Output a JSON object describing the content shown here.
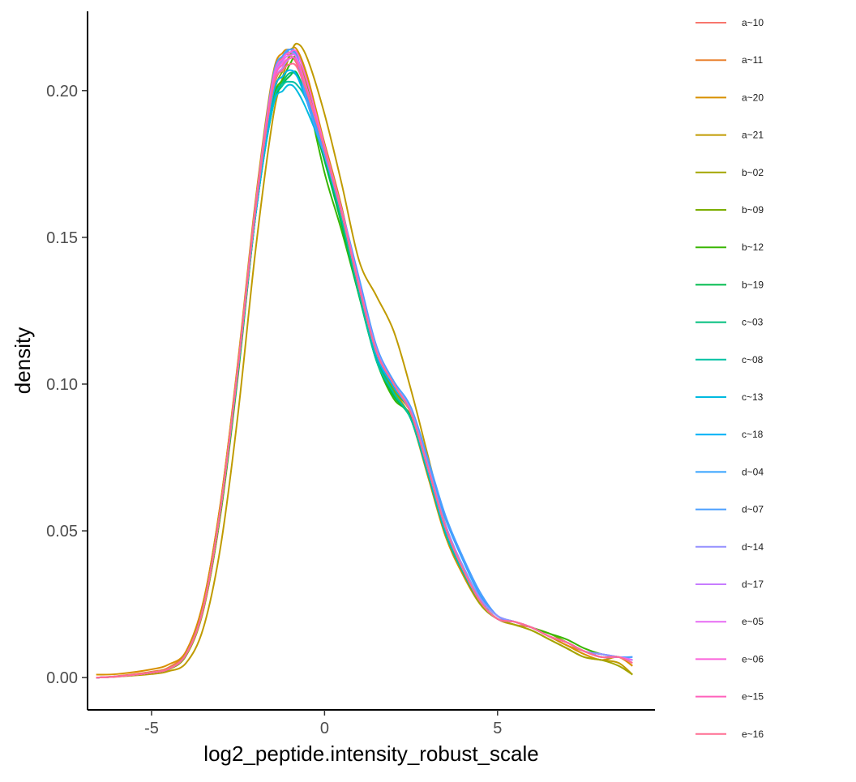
{
  "chart_data": {
    "type": "line",
    "title": "",
    "xlabel": "log2_peptide.intensity_robust_scale",
    "ylabel": "density",
    "xlim": [
      -6.85,
      9.55
    ],
    "ylim": [
      -0.011,
      0.227
    ],
    "x_ticks": [
      -5,
      0,
      5
    ],
    "x_tick_labels": [
      "-5",
      "0",
      "5"
    ],
    "y_ticks": [
      0.0,
      0.05,
      0.1,
      0.15,
      0.2
    ],
    "y_tick_labels": [
      "0.00",
      "0.05",
      "0.10",
      "0.15",
      "0.20"
    ],
    "grid": false,
    "legend_position": "right",
    "x": [
      -6.6,
      -6.0,
      -5.0,
      -4.5,
      -4.0,
      -3.5,
      -3.0,
      -2.5,
      -2.0,
      -1.5,
      -1.2,
      -1.0,
      -0.8,
      -0.5,
      0.0,
      0.5,
      1.0,
      1.5,
      2.0,
      2.5,
      3.0,
      3.5,
      4.0,
      4.5,
      5.0,
      5.5,
      6.0,
      6.5,
      7.0,
      7.5,
      8.0,
      8.5,
      8.9
    ],
    "series": [
      {
        "name": "a~10",
        "color": "#F8766D",
        "values": [
          0.0,
          0.0004,
          0.0018,
          0.003,
          0.008,
          0.024,
          0.058,
          0.105,
          0.158,
          0.2,
          0.211,
          0.212,
          0.209,
          0.2,
          0.182,
          0.16,
          0.133,
          0.11,
          0.1,
          0.09,
          0.07,
          0.05,
          0.037,
          0.026,
          0.02,
          0.019,
          0.017,
          0.014,
          0.012,
          0.009,
          0.007,
          0.007,
          0.005
        ]
      },
      {
        "name": "a~11",
        "color": "#EA8331",
        "values": [
          0.0,
          0.0005,
          0.002,
          0.0035,
          0.009,
          0.026,
          0.06,
          0.107,
          0.16,
          0.202,
          0.212,
          0.213,
          0.211,
          0.202,
          0.18,
          0.158,
          0.132,
          0.11,
          0.1,
          0.09,
          0.07,
          0.05,
          0.036,
          0.026,
          0.02,
          0.018,
          0.017,
          0.014,
          0.011,
          0.009,
          0.007,
          0.007,
          0.004
        ]
      },
      {
        "name": "a~20",
        "color": "#D89000",
        "values": [
          0.001,
          0.0012,
          0.0028,
          0.0045,
          0.009,
          0.026,
          0.06,
          0.108,
          0.162,
          0.205,
          0.213,
          0.214,
          0.214,
          0.205,
          0.182,
          0.16,
          0.133,
          0.11,
          0.098,
          0.088,
          0.068,
          0.048,
          0.035,
          0.025,
          0.02,
          0.019,
          0.017,
          0.014,
          0.011,
          0.008,
          0.006,
          0.007,
          0.004
        ]
      },
      {
        "name": "a~21",
        "color": "#C09B00",
        "values": [
          0.0,
          0.0003,
          0.0012,
          0.0022,
          0.005,
          0.017,
          0.045,
          0.09,
          0.145,
          0.19,
          0.205,
          0.212,
          0.216,
          0.211,
          0.192,
          0.168,
          0.142,
          0.13,
          0.118,
          0.098,
          0.075,
          0.052,
          0.037,
          0.026,
          0.02,
          0.018,
          0.016,
          0.013,
          0.01,
          0.007,
          0.006,
          0.005,
          0.001
        ]
      },
      {
        "name": "b~02",
        "color": "#A3A500",
        "values": [
          0.0,
          0.0004,
          0.0016,
          0.0028,
          0.0075,
          0.023,
          0.056,
          0.103,
          0.157,
          0.199,
          0.208,
          0.211,
          0.21,
          0.201,
          0.18,
          0.158,
          0.133,
          0.112,
          0.1,
          0.09,
          0.07,
          0.05,
          0.036,
          0.025,
          0.02,
          0.018,
          0.016,
          0.013,
          0.01,
          0.007,
          0.006,
          0.004,
          0.001
        ]
      },
      {
        "name": "b~09",
        "color": "#7CAE00",
        "values": [
          0.0,
          0.0004,
          0.0017,
          0.003,
          0.0078,
          0.024,
          0.057,
          0.104,
          0.157,
          0.197,
          0.207,
          0.212,
          0.213,
          0.203,
          0.178,
          0.156,
          0.132,
          0.11,
          0.098,
          0.09,
          0.07,
          0.05,
          0.036,
          0.026,
          0.02,
          0.019,
          0.017,
          0.015,
          0.012,
          0.009,
          0.007,
          0.007,
          0.006
        ]
      },
      {
        "name": "b~12",
        "color": "#39B600",
        "values": [
          0.0,
          0.0004,
          0.0016,
          0.0029,
          0.0078,
          0.024,
          0.057,
          0.104,
          0.157,
          0.196,
          0.204,
          0.209,
          0.211,
          0.198,
          0.172,
          0.152,
          0.13,
          0.108,
          0.095,
          0.089,
          0.07,
          0.05,
          0.036,
          0.026,
          0.02,
          0.019,
          0.017,
          0.015,
          0.013,
          0.01,
          0.008,
          0.007,
          0.006
        ]
      },
      {
        "name": "b~19",
        "color": "#00BB4E",
        "values": [
          0.0,
          0.0004,
          0.0017,
          0.003,
          0.008,
          0.024,
          0.057,
          0.104,
          0.157,
          0.194,
          0.202,
          0.205,
          0.206,
          0.196,
          0.176,
          0.154,
          0.13,
          0.108,
          0.096,
          0.088,
          0.069,
          0.049,
          0.036,
          0.026,
          0.02,
          0.019,
          0.017,
          0.014,
          0.012,
          0.009,
          0.007,
          0.007,
          0.006
        ]
      },
      {
        "name": "c~03",
        "color": "#00BF7D",
        "values": [
          0.0,
          0.0004,
          0.0017,
          0.003,
          0.008,
          0.024,
          0.058,
          0.105,
          0.157,
          0.195,
          0.203,
          0.206,
          0.205,
          0.197,
          0.178,
          0.156,
          0.131,
          0.109,
          0.097,
          0.088,
          0.069,
          0.049,
          0.036,
          0.026,
          0.02,
          0.019,
          0.017,
          0.014,
          0.012,
          0.009,
          0.007,
          0.007,
          0.006
        ]
      },
      {
        "name": "c~08",
        "color": "#00C1A3",
        "values": [
          0.0,
          0.0004,
          0.0017,
          0.003,
          0.008,
          0.024,
          0.058,
          0.105,
          0.157,
          0.195,
          0.202,
          0.203,
          0.202,
          0.196,
          0.178,
          0.156,
          0.131,
          0.108,
          0.097,
          0.088,
          0.069,
          0.049,
          0.036,
          0.026,
          0.02,
          0.019,
          0.017,
          0.014,
          0.012,
          0.009,
          0.007,
          0.007,
          0.006
        ]
      },
      {
        "name": "c~13",
        "color": "#00BAE0",
        "values": [
          0.0,
          0.0004,
          0.0017,
          0.003,
          0.008,
          0.024,
          0.058,
          0.105,
          0.157,
          0.194,
          0.2,
          0.202,
          0.2,
          0.193,
          0.178,
          0.158,
          0.133,
          0.11,
          0.099,
          0.09,
          0.07,
          0.05,
          0.037,
          0.026,
          0.02,
          0.019,
          0.017,
          0.014,
          0.012,
          0.009,
          0.007,
          0.007,
          0.006
        ]
      },
      {
        "name": "c~18",
        "color": "#00B0F6",
        "values": [
          0.0,
          0.0004,
          0.0017,
          0.003,
          0.008,
          0.024,
          0.058,
          0.105,
          0.158,
          0.198,
          0.205,
          0.207,
          0.205,
          0.196,
          0.18,
          0.159,
          0.134,
          0.11,
          0.099,
          0.09,
          0.071,
          0.051,
          0.038,
          0.027,
          0.021,
          0.019,
          0.017,
          0.014,
          0.012,
          0.009,
          0.008,
          0.007,
          0.006
        ]
      },
      {
        "name": "d~04",
        "color": "#35A2FF",
        "values": [
          0.0,
          0.0004,
          0.0017,
          0.003,
          0.008,
          0.024,
          0.058,
          0.106,
          0.159,
          0.202,
          0.211,
          0.214,
          0.212,
          0.198,
          0.178,
          0.158,
          0.134,
          0.111,
          0.1,
          0.091,
          0.073,
          0.054,
          0.04,
          0.028,
          0.021,
          0.019,
          0.017,
          0.014,
          0.012,
          0.009,
          0.008,
          0.007,
          0.007
        ]
      },
      {
        "name": "d~07",
        "color": "#4B9FFF",
        "values": [
          0.0,
          0.0004,
          0.0017,
          0.003,
          0.008,
          0.024,
          0.058,
          0.106,
          0.16,
          0.204,
          0.212,
          0.214,
          0.211,
          0.196,
          0.178,
          0.159,
          0.136,
          0.113,
          0.101,
          0.092,
          0.074,
          0.055,
          0.041,
          0.029,
          0.021,
          0.019,
          0.017,
          0.014,
          0.012,
          0.009,
          0.008,
          0.007,
          0.007
        ]
      },
      {
        "name": "d~14",
        "color": "#9590FF",
        "values": [
          0.0,
          0.0004,
          0.0017,
          0.003,
          0.008,
          0.024,
          0.058,
          0.106,
          0.16,
          0.202,
          0.211,
          0.213,
          0.211,
          0.2,
          0.18,
          0.158,
          0.134,
          0.112,
          0.1,
          0.091,
          0.072,
          0.052,
          0.038,
          0.027,
          0.021,
          0.019,
          0.017,
          0.014,
          0.012,
          0.009,
          0.008,
          0.007,
          0.006
        ]
      },
      {
        "name": "d~17",
        "color": "#C77CFF",
        "values": [
          0.0,
          0.0004,
          0.0017,
          0.003,
          0.008,
          0.024,
          0.058,
          0.106,
          0.159,
          0.2,
          0.208,
          0.211,
          0.21,
          0.2,
          0.18,
          0.158,
          0.133,
          0.111,
          0.1,
          0.09,
          0.071,
          0.051,
          0.037,
          0.026,
          0.02,
          0.019,
          0.017,
          0.014,
          0.012,
          0.009,
          0.007,
          0.007,
          0.006
        ]
      },
      {
        "name": "e~05",
        "color": "#E76BF3",
        "values": [
          0.0,
          0.0004,
          0.0017,
          0.003,
          0.008,
          0.024,
          0.058,
          0.106,
          0.159,
          0.201,
          0.21,
          0.212,
          0.211,
          0.2,
          0.18,
          0.158,
          0.133,
          0.111,
          0.1,
          0.09,
          0.071,
          0.051,
          0.037,
          0.026,
          0.02,
          0.019,
          0.017,
          0.014,
          0.012,
          0.009,
          0.007,
          0.007,
          0.006
        ]
      },
      {
        "name": "e~06",
        "color": "#FA62DB",
        "values": [
          0.0,
          0.0004,
          0.0017,
          0.003,
          0.008,
          0.024,
          0.058,
          0.106,
          0.16,
          0.203,
          0.211,
          0.213,
          0.213,
          0.203,
          0.181,
          0.159,
          0.134,
          0.111,
          0.1,
          0.09,
          0.071,
          0.051,
          0.037,
          0.026,
          0.02,
          0.019,
          0.017,
          0.014,
          0.012,
          0.009,
          0.007,
          0.007,
          0.005
        ]
      },
      {
        "name": "e~15",
        "color": "#FF62BC",
        "values": [
          0.0,
          0.0004,
          0.0017,
          0.003,
          0.008,
          0.024,
          0.058,
          0.106,
          0.159,
          0.201,
          0.209,
          0.211,
          0.21,
          0.2,
          0.18,
          0.158,
          0.133,
          0.111,
          0.1,
          0.09,
          0.071,
          0.051,
          0.037,
          0.026,
          0.02,
          0.019,
          0.017,
          0.014,
          0.012,
          0.009,
          0.007,
          0.007,
          0.005
        ]
      },
      {
        "name": "e~16",
        "color": "#FF6C91",
        "values": [
          0.0,
          0.0004,
          0.0017,
          0.003,
          0.008,
          0.024,
          0.058,
          0.106,
          0.159,
          0.2,
          0.207,
          0.209,
          0.208,
          0.199,
          0.18,
          0.158,
          0.133,
          0.111,
          0.1,
          0.09,
          0.071,
          0.051,
          0.037,
          0.026,
          0.02,
          0.019,
          0.017,
          0.014,
          0.012,
          0.009,
          0.007,
          0.007,
          0.005
        ]
      }
    ]
  }
}
